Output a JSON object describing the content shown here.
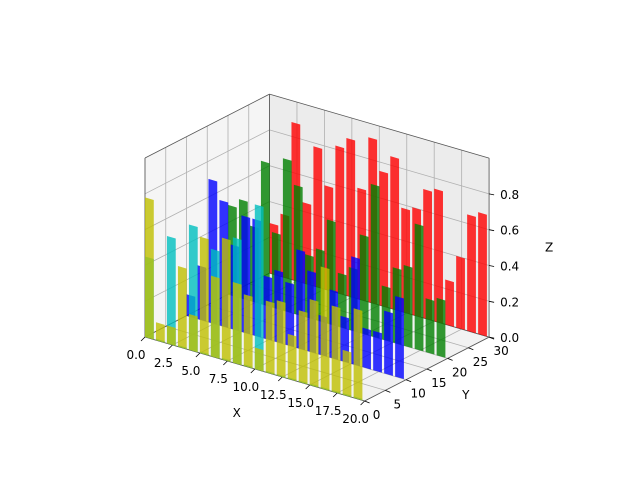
{
  "chart_data": {
    "type": "bar",
    "projection": "3d",
    "title": "",
    "xlabel": "X",
    "ylabel": "Y",
    "zlabel": "Z",
    "xlim": [
      0,
      20
    ],
    "ylim": [
      0,
      30
    ],
    "zlim": [
      0,
      1
    ],
    "grid": true,
    "x_ticks": [
      "0.0",
      "2.5",
      "5.0",
      "7.5",
      "10.0",
      "12.5",
      "15.0",
      "17.5",
      "20.0"
    ],
    "y_ticks": [
      "0",
      "5",
      "10",
      "15",
      "20",
      "25",
      "30"
    ],
    "z_ticks": [
      "0.0",
      "0.2",
      "0.4",
      "0.6",
      "0.8"
    ],
    "x": [
      0,
      1,
      2,
      3,
      4,
      5,
      6,
      7,
      8,
      9,
      10,
      11,
      12,
      13,
      14,
      15,
      16,
      17,
      18,
      19
    ],
    "series": [
      {
        "y": 30,
        "color": "#ff0000",
        "values": [
          0.28,
          0.35,
          0.88,
          0.45,
          0.78,
          0.58,
          0.82,
          0.88,
          0.62,
          0.92,
          0.75,
          0.85,
          0.58,
          0.6,
          0.72,
          0.74,
          0.25,
          0.4,
          0.65,
          0.68
        ]
      },
      {
        "y": 20,
        "color": "#008000",
        "values": [
          0.5,
          0.55,
          0.42,
          0.8,
          0.42,
          0.85,
          0.72,
          0.35,
          0.4,
          0.58,
          0.3,
          0.35,
          0.55,
          0.85,
          0.3,
          0.42,
          0.45,
          0.7,
          0.3,
          0.32
        ]
      },
      {
        "y": 10,
        "color": "#0000ff",
        "values": [
          0.12,
          0.3,
          0.8,
          0.7,
          0.47,
          0.65,
          0.65,
          0.35,
          0.4,
          0.35,
          0.55,
          0.45,
          0.22,
          0.38,
          0.25,
          0.6,
          0.22,
          0.22,
          0.35,
          0.45
        ]
      },
      {
        "y": 0,
        "color": "#00bfbf",
        "values": [
          0.45,
          0.0,
          0.6,
          0.0,
          0.7,
          0.0,
          0.6,
          0.0,
          0.7,
          0.0,
          0.92,
          0.0,
          0.0,
          0.0,
          0.0,
          0.0,
          0.0,
          0.0,
          0.0,
          0.0
        ]
      },
      {
        "y": 0,
        "color": "#bfbf00",
        "values": [
          0.78,
          0.1,
          0.1,
          0.45,
          0.2,
          0.65,
          0.45,
          0.68,
          0.45,
          0.4,
          0.12,
          0.4,
          0.42,
          0.25,
          0.4,
          0.48,
          0.68,
          0.48,
          0.25,
          0.5
        ]
      }
    ]
  }
}
